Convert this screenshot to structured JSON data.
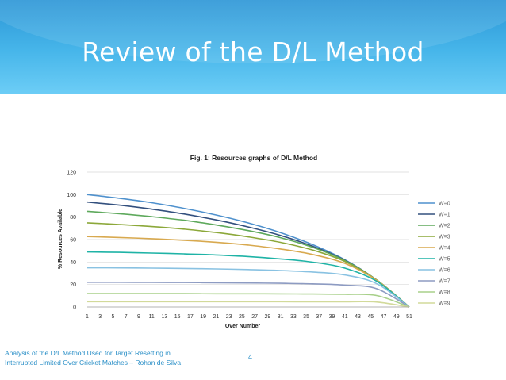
{
  "slide": {
    "title": "Review of the D/L Method",
    "footer_line1": "Analysis of the D/L Method Used for Target Resetting in",
    "footer_line2": "Interrupted Limited Over Cricket Matches – Rohan  de Silva",
    "page_number": "4",
    "banner_color": "#3aaae2"
  },
  "chart_data": {
    "type": "line",
    "title": "Fig. 1: Resources graphs of D/L Method",
    "xlabel": "Over Number",
    "ylabel": "% Resources Available",
    "ylim": [
      0,
      120
    ],
    "yticks": [
      0,
      20,
      40,
      60,
      80,
      100,
      120
    ],
    "xlim": [
      1,
      51
    ],
    "xticks": [
      1,
      3,
      5,
      7,
      9,
      11,
      13,
      15,
      17,
      19,
      21,
      23,
      25,
      27,
      29,
      31,
      33,
      35,
      37,
      39,
      41,
      43,
      45,
      47,
      49,
      51
    ],
    "x": [
      1,
      6,
      11,
      16,
      21,
      26,
      31,
      36,
      41,
      46,
      51
    ],
    "legend_position": "right",
    "series": [
      {
        "name": "W=0",
        "color": "#4f91cd",
        "values": [
          100,
          96.8,
          92.8,
          87.8,
          81.9,
          74.8,
          66.2,
          55.5,
          42.0,
          23.8,
          0
        ]
      },
      {
        "name": "W=1",
        "color": "#33507e",
        "values": [
          93.4,
          90.6,
          87.1,
          82.8,
          77.5,
          71.2,
          63.7,
          54.1,
          41.7,
          23.8,
          0
        ]
      },
      {
        "name": "W=2",
        "color": "#5ea95c",
        "values": [
          85.1,
          83.0,
          80.4,
          77.2,
          73.0,
          68.0,
          61.7,
          53.1,
          41.3,
          23.8,
          0
        ]
      },
      {
        "name": "W=3",
        "color": "#8ca83a",
        "values": [
          74.9,
          73.4,
          71.6,
          69.3,
          66.3,
          62.4,
          57.5,
          50.7,
          40.5,
          23.8,
          0
        ]
      },
      {
        "name": "W=4",
        "color": "#d8a94f",
        "values": [
          62.7,
          61.8,
          60.8,
          59.4,
          57.6,
          55.1,
          51.6,
          46.7,
          38.8,
          23.6,
          0
        ]
      },
      {
        "name": "W=5",
        "color": "#1fb3a6",
        "values": [
          49.0,
          48.6,
          48.0,
          47.3,
          46.3,
          44.9,
          42.8,
          39.9,
          34.6,
          22.7,
          0
        ]
      },
      {
        "name": "W=6",
        "color": "#89c2e2",
        "values": [
          34.9,
          34.8,
          34.6,
          34.3,
          33.9,
          33.3,
          32.5,
          31.1,
          28.5,
          20.6,
          0
        ]
      },
      {
        "name": "W=7",
        "color": "#8d9bc2",
        "values": [
          22.0,
          22.0,
          21.9,
          21.8,
          21.6,
          21.4,
          21.1,
          20.6,
          19.5,
          16.2,
          0
        ]
      },
      {
        "name": "W=8",
        "color": "#a8d08a",
        "values": [
          11.9,
          11.9,
          11.9,
          11.9,
          11.8,
          11.8,
          11.7,
          11.6,
          11.3,
          10.2,
          0
        ]
      },
      {
        "name": "W=9",
        "color": "#d2da9a",
        "values": [
          4.7,
          4.7,
          4.7,
          4.7,
          4.7,
          4.7,
          4.7,
          4.6,
          4.6,
          4.4,
          0
        ]
      }
    ]
  }
}
